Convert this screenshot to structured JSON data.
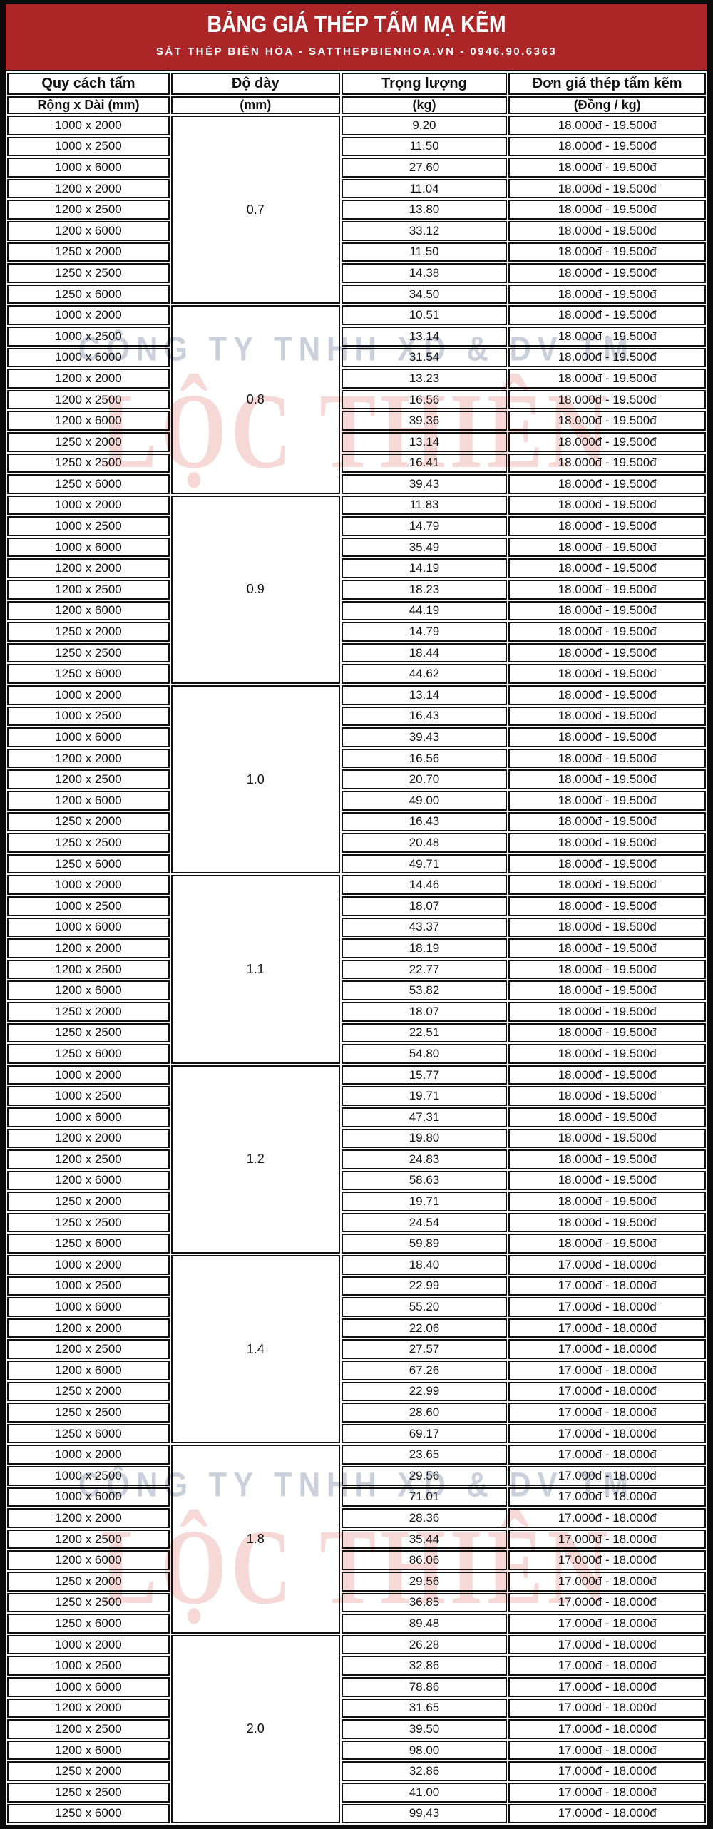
{
  "header": {
    "title": "BẢNG GIÁ THÉP TẤM MẠ KẼM",
    "subtitle": "SẮT THÉP BIÊN HÒA - SATTHEPBIENHOA.VN - 0946.90.6363"
  },
  "colors": {
    "banner_red": "#AC2527",
    "border_black": "#101010",
    "watermark_grey": "rgba(156,170,192,0.55)",
    "watermark_pink": "rgba(222,118,112,0.28)"
  },
  "watermark": {
    "company": "CÔNG TY TNHH XD & DV TM",
    "brand": "LỘC THIÊN"
  },
  "table": {
    "columns": [
      {
        "label": "Quy cách tấm",
        "sublabel": "Rộng x Dài (mm)"
      },
      {
        "label": "Độ dày",
        "sublabel": "(mm)"
      },
      {
        "label": "Trọng lượng",
        "sublabel": "(kg)"
      },
      {
        "label": "Đơn giá thép tấm kẽm",
        "sublabel": "(Đồng / kg)"
      }
    ],
    "sizes": [
      "1000 x 2000",
      "1000 x 2500",
      "1000 x 6000",
      "1200 x 2000",
      "1200 x 2500",
      "1200 x 6000",
      "1250 x 2000",
      "1250 x 2500",
      "1250 x 6000"
    ],
    "groups": [
      {
        "thickness": "0.7",
        "price": "18.000đ - 19.500đ",
        "weights": [
          "9.20",
          "11.50",
          "27.60",
          "11.04",
          "13.80",
          "33.12",
          "11.50",
          "14.38",
          "34.50"
        ]
      },
      {
        "thickness": "0.8",
        "price": "18.000đ - 19.500đ",
        "weights": [
          "10.51",
          "13.14",
          "31.54",
          "13.23",
          "16.56",
          "39.36",
          "13.14",
          "16.41",
          "39.43"
        ]
      },
      {
        "thickness": "0.9",
        "price": "18.000đ - 19.500đ",
        "weights": [
          "11.83",
          "14.79",
          "35.49",
          "14.19",
          "18.23",
          "44.19",
          "14.79",
          "18.44",
          "44.62"
        ]
      },
      {
        "thickness": "1.0",
        "price": "18.000đ - 19.500đ",
        "weights": [
          "13.14",
          "16.43",
          "39.43",
          "16.56",
          "20.70",
          "49.00",
          "16.43",
          "20.48",
          "49.71"
        ]
      },
      {
        "thickness": "1.1",
        "price": "18.000đ - 19.500đ",
        "weights": [
          "14.46",
          "18.07",
          "43.37",
          "18.19",
          "22.77",
          "53.82",
          "18.07",
          "22.51",
          "54.80"
        ]
      },
      {
        "thickness": "1.2",
        "price": "18.000đ - 19.500đ",
        "weights": [
          "15.77",
          "19.71",
          "47.31",
          "19.80",
          "24.83",
          "58.63",
          "19.71",
          "24.54",
          "59.89"
        ]
      },
      {
        "thickness": "1.4",
        "price": "17.000đ - 18.000đ",
        "weights": [
          "18.40",
          "22.99",
          "55.20",
          "22.06",
          "27.57",
          "67.26",
          "22.99",
          "28.60",
          "69.17"
        ]
      },
      {
        "thickness": "1.8",
        "price": "17.000đ - 18.000đ",
        "weights": [
          "23.65",
          "29.56",
          "71.01",
          "28.36",
          "35.44",
          "86.06",
          "29.56",
          "36.85",
          "89.48"
        ]
      },
      {
        "thickness": "2.0",
        "price": "17.000đ - 18.000đ",
        "weights": [
          "26.28",
          "32.86",
          "78.86",
          "31.65",
          "39.50",
          "98.00",
          "32.86",
          "41.00",
          "99.43"
        ]
      }
    ]
  }
}
